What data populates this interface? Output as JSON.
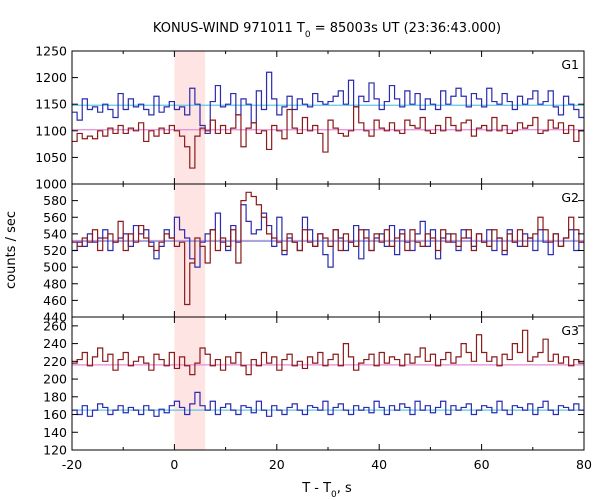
{
  "chart_data": {
    "type": "line",
    "title": "KONUS-WIND 971011 T",
    "title_sub": "0",
    "title_rest": " = 85003s UT (23:36:43.000)",
    "xlabel": "T - T",
    "xlabel_sub": "0",
    "xlabel_rest": ", s",
    "ylabel": "counts / sec",
    "xlim": [
      -20,
      80
    ],
    "x_ticks": [
      -20,
      0,
      20,
      40,
      60,
      80
    ],
    "highlight_interval": [
      0,
      6
    ],
    "highlight_color": "#ffe4e4",
    "grid": false,
    "panels": [
      {
        "name": "G1",
        "ylim": [
          1000,
          1250
        ],
        "y_ticks": [
          1000,
          1050,
          1100,
          1150,
          1200,
          1250
        ],
        "series": [
          {
            "color": "#2b2bb0",
            "bin_width": 1,
            "x_start": -20,
            "values": [
              1135,
              1120,
              1160,
              1140,
              1145,
              1135,
              1150,
              1140,
              1125,
              1170,
              1140,
              1160,
              1145,
              1150,
              1140,
              1130,
              1165,
              1135,
              1145,
              1155,
              1140,
              1145,
              1130,
              1180,
              1150,
              1110,
              1095,
              1155,
              1185,
              1145,
              1150,
              1170,
              1130,
              1160,
              1150,
              1115,
              1175,
              1140,
              1210,
              1160,
              1130,
              1145,
              1165,
              1140,
              1160,
              1150,
              1145,
              1170,
              1155,
              1150,
              1155,
              1165,
              1175,
              1150,
              1195,
              1145,
              1165,
              1155,
              1190,
              1160,
              1140,
              1155,
              1185,
              1160,
              1145,
              1175,
              1150,
              1170,
              1140,
              1160,
              1150,
              1140,
              1175,
              1150,
              1165,
              1180,
              1165,
              1145,
              1170,
              1160,
              1145,
              1180,
              1155,
              1150,
              1170,
              1155,
              1140,
              1165,
              1150,
              1160,
              1175,
              1150,
              1155,
              1175,
              1145,
              1130,
              1165,
              1150,
              1140,
              1125
            ]
          },
          {
            "color": "#8b1a1a",
            "bin_width": 1,
            "x_start": -20,
            "values": [
              1080,
              1095,
              1085,
              1090,
              1085,
              1100,
              1090,
              1105,
              1095,
              1110,
              1095,
              1105,
              1100,
              1115,
              1080,
              1100,
              1090,
              1105,
              1095,
              1110,
              1100,
              1090,
              1070,
              1030,
              1090,
              1105,
              1100,
              1120,
              1095,
              1110,
              1095,
              1105,
              1130,
              1070,
              1105,
              1115,
              1095,
              1100,
              1065,
              1110,
              1100,
              1085,
              1140,
              1105,
              1095,
              1125,
              1100,
              1110,
              1095,
              1060,
              1120,
              1105,
              1095,
              1090,
              1100,
              1145,
              1115,
              1100,
              1090,
              1120,
              1105,
              1100,
              1115,
              1100,
              1095,
              1120,
              1110,
              1105,
              1125,
              1100,
              1095,
              1110,
              1100,
              1125,
              1110,
              1100,
              1115,
              1120,
              1090,
              1105,
              1110,
              1100,
              1125,
              1100,
              1110,
              1095,
              1100,
              1115,
              1105,
              1110,
              1125,
              1095,
              1100,
              1120,
              1105,
              1115,
              1095,
              1110,
              1080,
              1100
            ]
          }
        ],
        "backgrounds": [
          {
            "value": 1148,
            "color": "#5bc8e6"
          },
          {
            "value": 1102,
            "color": "#e68ad8"
          }
        ]
      },
      {
        "name": "G2",
        "ylim": [
          440,
          600
        ],
        "y_ticks": [
          440,
          460,
          480,
          500,
          520,
          540,
          560,
          580
        ],
        "series": [
          {
            "color": "#2b2bb0",
            "bin_width": 1,
            "x_start": -20,
            "values": [
              520,
              530,
              525,
              540,
              530,
              535,
              545,
              520,
              530,
              535,
              540,
              525,
              550,
              540,
              545,
              530,
              510,
              525,
              545,
              535,
              560,
              545,
              535,
              510,
              500,
              530,
              540,
              545,
              565,
              530,
              520,
              550,
              530,
              575,
              555,
              540,
              545,
              565,
              550,
              525,
              560,
              515,
              535,
              530,
              520,
              560,
              545,
              525,
              540,
              515,
              500,
              545,
              535,
              520,
              530,
              550,
              510,
              545,
              520,
              535,
              540,
              525,
              550,
              515,
              545,
              530,
              520,
              540,
              555,
              525,
              545,
              510,
              535,
              540,
              530,
              520,
              545,
              535,
              525,
              540,
              530,
              545,
              520,
              535,
              515,
              545,
              530,
              525,
              540,
              535,
              520,
              545,
              530,
              515,
              540,
              525,
              535,
              545,
              520,
              530
            ]
          },
          {
            "color": "#8b1a1a",
            "bin_width": 1,
            "x_start": -20,
            "values": [
              530,
              525,
              535,
              530,
              545,
              520,
              535,
              540,
              530,
              555,
              520,
              540,
              530,
              550,
              535,
              525,
              520,
              530,
              540,
              535,
              525,
              530,
              455,
              505,
              535,
              525,
              505,
              545,
              520,
              535,
              525,
              545,
              505,
              580,
              590,
              585,
              575,
              560,
              540,
              535,
              530,
              520,
              540,
              530,
              520,
              545,
              530,
              525,
              540,
              535,
              525,
              545,
              520,
              540,
              530,
              525,
              545,
              535,
              520,
              540,
              530,
              545,
              525,
              535,
              540,
              520,
              545,
              530,
              525,
              540,
              535,
              520,
              545,
              530,
              540,
              525,
              535,
              545,
              520,
              540,
              530,
              525,
              545,
              535,
              520,
              540,
              530,
              545,
              525,
              535,
              540,
              560,
              545,
              530,
              540,
              525,
              535,
              560,
              545,
              530
            ]
          }
        ],
        "backgrounds": [
          {
            "value": 531,
            "color": "#5bc8e6"
          },
          {
            "value": 532,
            "color": "#e68ad8"
          }
        ]
      },
      {
        "name": "G3",
        "ylim": [
          120,
          270
        ],
        "y_ticks": [
          120,
          140,
          160,
          180,
          200,
          220,
          240,
          260
        ],
        "series": [
          {
            "color": "#2b2bb0",
            "bin_width": 1,
            "x_start": -20,
            "values": [
              165,
              160,
              170,
              158,
              165,
              172,
              168,
              160,
              165,
              170,
              162,
              168,
              165,
              160,
              170,
              165,
              158,
              166,
              162,
              170,
              175,
              168,
              160,
              172,
              185,
              170,
              165,
              175,
              160,
              168,
              172,
              165,
              160,
              170,
              168,
              162,
              175,
              165,
              158,
              170,
              165,
              160,
              168,
              172,
              165,
              160,
              170,
              168,
              165,
              175,
              160,
              168,
              172,
              165,
              160,
              170,
              165,
              168,
              162,
              175,
              168,
              160,
              170,
              165,
              172,
              168,
              160,
              175,
              165,
              170,
              162,
              168,
              175,
              160,
              170,
              165,
              168,
              172,
              160,
              165,
              170,
              168,
              162,
              175,
              165,
              160,
              170,
              168,
              165,
              172,
              160,
              168,
              175,
              165,
              160,
              170,
              168,
              165,
              172,
              165
            ]
          },
          {
            "color": "#8b1a1a",
            "bin_width": 1,
            "x_start": -20,
            "values": [
              218,
              222,
              230,
              215,
              225,
              235,
              220,
              228,
              210,
              222,
              230,
              215,
              220,
              225,
              218,
              210,
              228,
              222,
              215,
              230,
              212,
              225,
              215,
              205,
              218,
              235,
              228,
              215,
              222,
              210,
              225,
              218,
              230,
              215,
              205,
              222,
              215,
              230,
              218,
              225,
              210,
              222,
              228,
              215,
              220,
              212,
              225,
              218,
              230,
              215,
              222,
              228,
              215,
              240,
              225,
              210,
              218,
              222,
              228,
              215,
              230,
              218,
              225,
              222,
              215,
              228,
              218,
              225,
              235,
              220,
              228,
              215,
              222,
              230,
              218,
              225,
              240,
              230,
              220,
              250,
              230,
              220,
              225,
              215,
              228,
              222,
              240,
              230,
              255,
              220,
              225,
              230,
              245,
              220,
              228,
              218,
              225,
              215,
              222,
              218
            ]
          }
        ],
        "backgrounds": [
          {
            "value": 165,
            "color": "#5bc8e6"
          },
          {
            "value": 216,
            "color": "#e68ad8"
          }
        ]
      }
    ]
  }
}
